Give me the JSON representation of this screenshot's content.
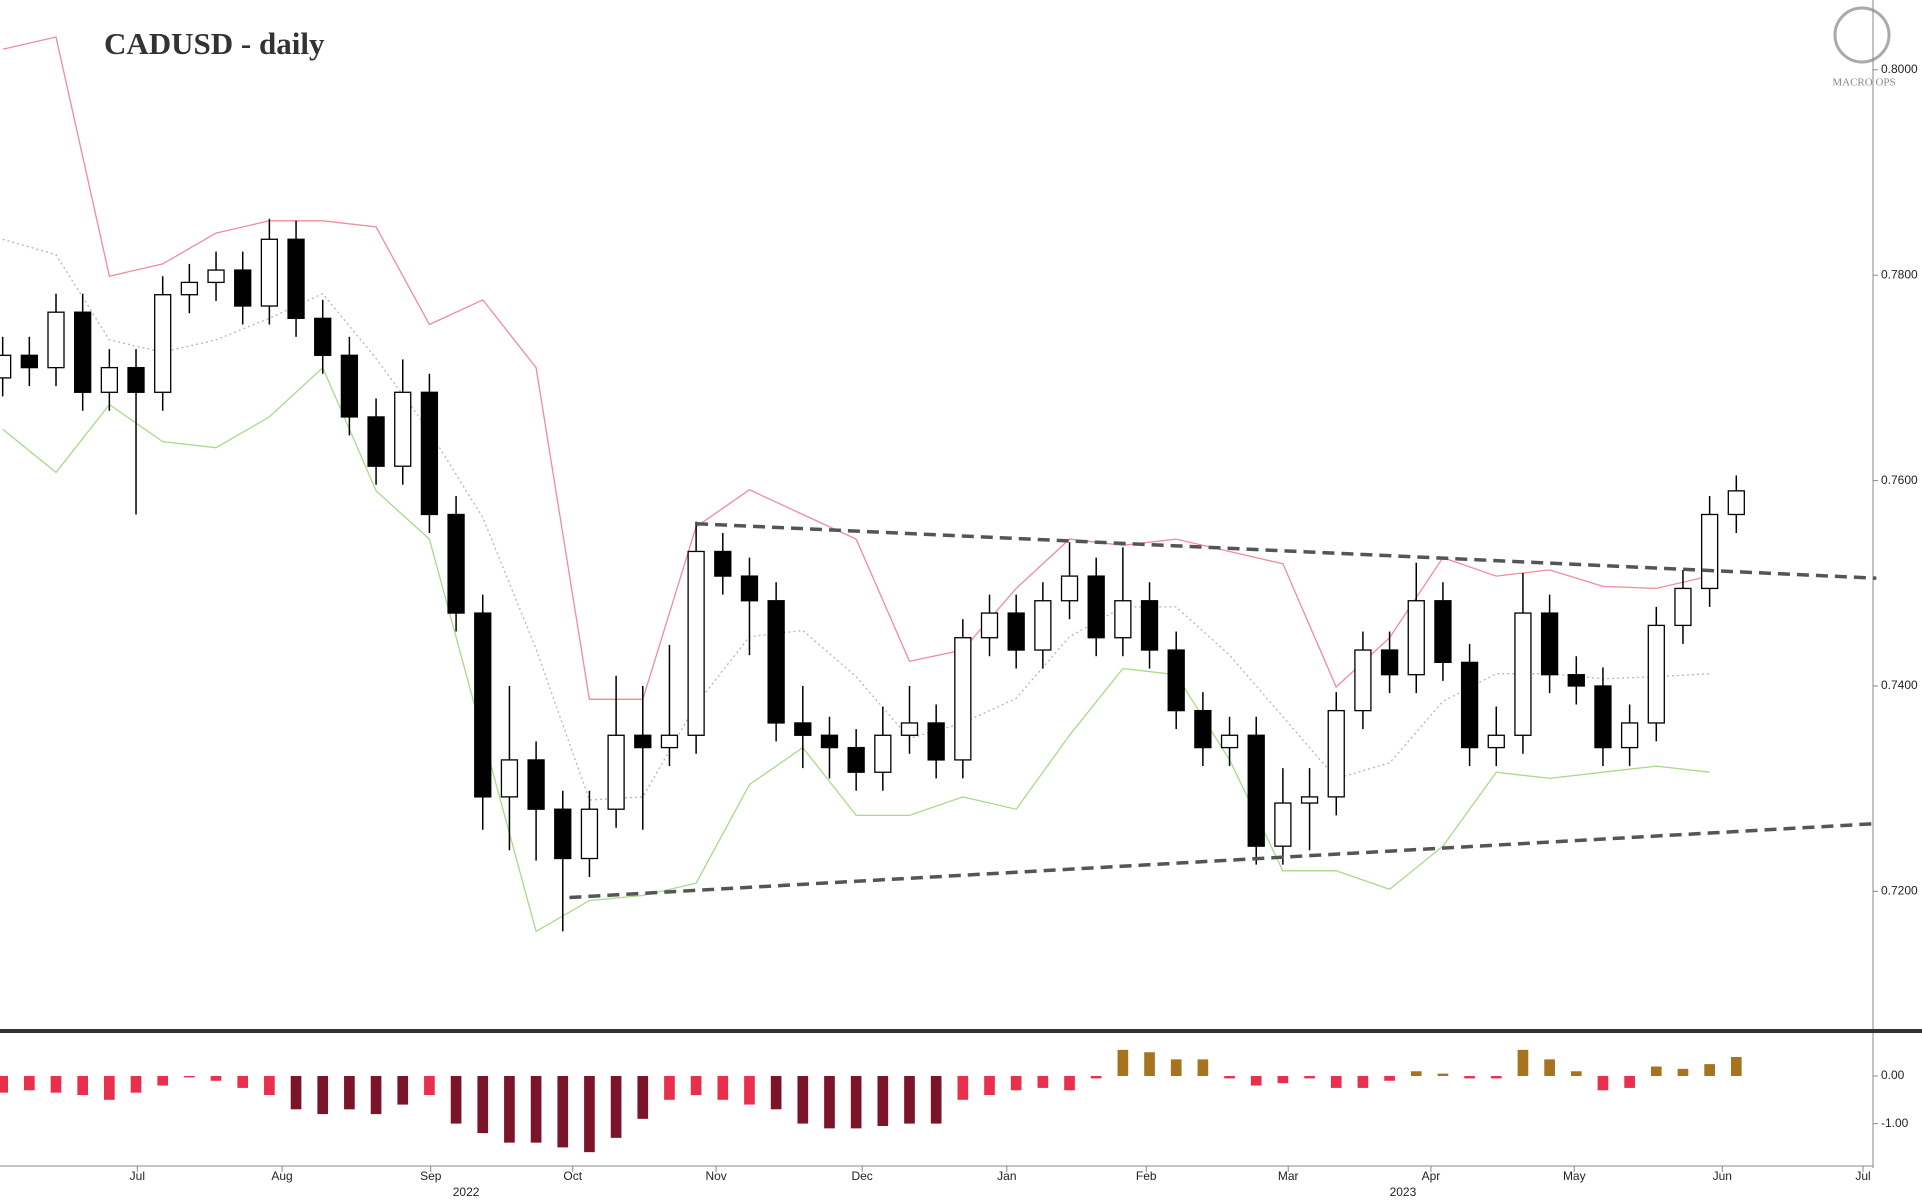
{
  "logo": "MACRO OPS",
  "chart_data": [
    {
      "type": "candlestick",
      "title": "CADUSD - daily",
      "x": [
        0,
        4,
        8,
        12,
        16,
        20,
        24,
        28,
        32,
        36,
        40,
        44,
        48,
        52,
        56,
        60,
        64,
        68,
        72,
        76,
        80,
        84,
        88,
        92,
        96,
        100,
        104,
        108,
        112,
        116,
        120,
        124,
        128,
        132,
        136,
        140,
        144,
        148,
        152,
        156,
        160,
        164,
        168,
        172,
        176,
        180,
        184,
        188,
        192,
        196,
        200,
        204,
        208,
        212,
        216,
        220,
        224,
        228,
        232,
        236,
        240,
        244,
        248,
        252,
        256,
        260
      ],
      "open": [
        0.77,
        0.7722,
        0.771,
        0.7764,
        0.7686,
        0.771,
        0.7686,
        0.7781,
        0.7793,
        0.7805,
        0.777,
        0.7835,
        0.7758,
        0.7722,
        0.7662,
        0.7614,
        0.7686,
        0.7567,
        0.7471,
        0.7292,
        0.7328,
        0.728,
        0.7232,
        0.728,
        0.7352,
        0.734,
        0.7352,
        0.7531,
        0.7507,
        0.7483,
        0.7364,
        0.7352,
        0.734,
        0.7316,
        0.7352,
        0.7364,
        0.7328,
        0.7447,
        0.7471,
        0.7435,
        0.7483,
        0.7507,
        0.7447,
        0.7483,
        0.7435,
        0.7376,
        0.734,
        0.7352,
        0.7244,
        0.7286,
        0.7292,
        0.7376,
        0.7435,
        0.7411,
        0.7483,
        0.7423,
        0.734,
        0.7352,
        0.7471,
        0.7411,
        0.74,
        0.734,
        0.7364,
        0.7459,
        0.7495,
        0.7567
      ],
      "high": [
        0.774,
        0.774,
        0.7782,
        0.7782,
        0.7728,
        0.7728,
        0.7799,
        0.7811,
        0.7823,
        0.7823,
        0.7855,
        0.7853,
        0.7776,
        0.774,
        0.768,
        0.7718,
        0.7704,
        0.7585,
        0.7489,
        0.74,
        0.7346,
        0.7298,
        0.7298,
        0.741,
        0.74,
        0.744,
        0.756,
        0.7549,
        0.7525,
        0.7501,
        0.74,
        0.737,
        0.7358,
        0.738,
        0.74,
        0.7382,
        0.7465,
        0.7489,
        0.7489,
        0.7501,
        0.754,
        0.7525,
        0.7535,
        0.7501,
        0.7453,
        0.7394,
        0.737,
        0.737,
        0.732,
        0.732,
        0.7394,
        0.7453,
        0.7453,
        0.752,
        0.7501,
        0.7441,
        0.738,
        0.751,
        0.7489,
        0.7429,
        0.7418,
        0.7382,
        0.7477,
        0.7513,
        0.7585,
        0.7605
      ],
      "low": [
        0.7682,
        0.7692,
        0.7692,
        0.7668,
        0.7668,
        0.7567,
        0.7668,
        0.7763,
        0.7775,
        0.7752,
        0.7752,
        0.774,
        0.7704,
        0.7644,
        0.7596,
        0.7596,
        0.7549,
        0.7453,
        0.726,
        0.724,
        0.723,
        0.7161,
        0.7214,
        0.7262,
        0.726,
        0.7322,
        0.7334,
        0.7489,
        0.743,
        0.7346,
        0.732,
        0.731,
        0.7298,
        0.7298,
        0.7334,
        0.731,
        0.731,
        0.7429,
        0.7417,
        0.7417,
        0.7465,
        0.7429,
        0.7429,
        0.7417,
        0.7358,
        0.7322,
        0.7322,
        0.7226,
        0.7226,
        0.724,
        0.7274,
        0.7358,
        0.7393,
        0.7393,
        0.7405,
        0.7322,
        0.7322,
        0.7334,
        0.7393,
        0.7382,
        0.7322,
        0.7322,
        0.7346,
        0.7441,
        0.7477,
        0.7549
      ],
      "close": [
        0.7722,
        0.771,
        0.7764,
        0.7686,
        0.771,
        0.7686,
        0.7781,
        0.7793,
        0.7805,
        0.777,
        0.7835,
        0.7758,
        0.7722,
        0.7662,
        0.7614,
        0.7686,
        0.7567,
        0.7471,
        0.7292,
        0.7328,
        0.728,
        0.7232,
        0.728,
        0.7352,
        0.734,
        0.7352,
        0.7531,
        0.7507,
        0.7483,
        0.7364,
        0.7352,
        0.734,
        0.7316,
        0.7352,
        0.7364,
        0.7328,
        0.7447,
        0.7471,
        0.7435,
        0.7483,
        0.7507,
        0.7447,
        0.7483,
        0.7435,
        0.7376,
        0.734,
        0.7352,
        0.7244,
        0.7286,
        0.7292,
        0.7376,
        0.7435,
        0.7411,
        0.7483,
        0.7423,
        0.734,
        0.7352,
        0.7471,
        0.7411,
        0.74,
        0.734,
        0.7364,
        0.7459,
        0.7495,
        0.7567,
        0.759
      ],
      "up_color": "#ffffff",
      "down_color": "#000000",
      "line_x": [
        0,
        8,
        16,
        24,
        32,
        40,
        48,
        56,
        64,
        72,
        80,
        88,
        96,
        104,
        112,
        120,
        128,
        136,
        144,
        152,
        160,
        168,
        176,
        184,
        192,
        200,
        208,
        216,
        224,
        232,
        240,
        248,
        256
      ],
      "lines": [
        {
          "color": "#f28b9b",
          "dash": false,
          "values": [
            0.802,
            0.8032,
            0.7799,
            0.7811,
            0.7841,
            0.7853,
            0.7853,
            0.7847,
            0.7752,
            0.7776,
            0.771,
            0.7387,
            0.7387,
            0.7555,
            0.7591,
            0.7567,
            0.7543,
            0.7424,
            0.7435,
            0.7495,
            0.7543,
            0.7537,
            0.7543,
            0.7531,
            0.7519,
            0.7399,
            0.7447,
            0.7525,
            0.7507,
            0.7513,
            0.7497,
            0.7495,
            0.7507
          ]
        },
        {
          "color": "#b5b5b5",
          "dash": true,
          "values": [
            0.7835,
            0.782,
            0.7737,
            0.7725,
            0.7737,
            0.7758,
            0.7782,
            0.7719,
            0.7648,
            0.7564,
            0.7436,
            0.7289,
            0.7292,
            0.7382,
            0.7448,
            0.7454,
            0.7409,
            0.7349,
            0.7364,
            0.7388,
            0.7448,
            0.7477,
            0.7477,
            0.743,
            0.737,
            0.731,
            0.7325,
            0.7385,
            0.7412,
            0.7412,
            0.7407,
            0.7409,
            0.7412
          ]
        },
        {
          "color": "#a9d98a",
          "dash": false,
          "values": [
            0.765,
            0.7608,
            0.7674,
            0.7638,
            0.7632,
            0.7662,
            0.771,
            0.759,
            0.7543,
            0.7352,
            0.7161,
            0.7191,
            0.7196,
            0.7208,
            0.7304,
            0.734,
            0.7274,
            0.7274,
            0.7292,
            0.728,
            0.7352,
            0.7417,
            0.7411,
            0.7328,
            0.722,
            0.722,
            0.7202,
            0.7244,
            0.7316,
            0.731,
            0.7316,
            0.7322,
            0.7316
          ]
        }
      ],
      "trendlines": [
        {
          "color": "#555555",
          "x": [
            104,
            281
          ],
          "values": [
            0.7558,
            0.7505
          ]
        },
        {
          "color": "#555555",
          "x": [
            85,
            281
          ],
          "values": [
            0.7194,
            0.7266
          ]
        }
      ],
      "xlim": [
        -0.4,
        280.5
      ],
      "xticks": [
        {
          "value": 20.2,
          "label": "Jul"
        },
        {
          "value": 41.9,
          "label": "Aug"
        },
        {
          "value": 64.2,
          "label": "Sep"
        },
        {
          "value": 85.5,
          "label": "Oct"
        },
        {
          "value": 107,
          "label": "Nov"
        },
        {
          "value": 128.9,
          "label": "Dec"
        },
        {
          "value": 150.6,
          "label": "Jan"
        },
        {
          "value": 171.5,
          "label": "Feb"
        },
        {
          "value": 192.8,
          "label": "Mar"
        },
        {
          "value": 214.2,
          "label": "Apr"
        },
        {
          "value": 235.7,
          "label": "May"
        },
        {
          "value": 257.9,
          "label": "Jun"
        },
        {
          "value": 279,
          "label": "Jul"
        }
      ],
      "year_labels": [
        {
          "value": 69.5,
          "label": "2022"
        },
        {
          "value": 210,
          "label": "2023"
        }
      ],
      "ylim": [
        0.7065,
        0.8068
      ],
      "yticks": [
        {
          "value": 0.72,
          "label": "0.7200"
        },
        {
          "value": 0.74,
          "label": "0.7400"
        },
        {
          "value": 0.76,
          "label": "0.7600"
        },
        {
          "value": 0.78,
          "label": "0.7800"
        },
        {
          "value": 0.8,
          "label": "0.8000"
        }
      ]
    },
    {
      "type": "bar",
      "x": [
        0,
        4,
        8,
        12,
        16,
        20,
        24,
        28,
        32,
        36,
        40,
        44,
        48,
        52,
        56,
        60,
        64,
        68,
        72,
        76,
        80,
        84,
        88,
        92,
        96,
        100,
        104,
        108,
        112,
        116,
        120,
        124,
        128,
        132,
        136,
        140,
        144,
        148,
        152,
        156,
        160,
        164,
        168,
        172,
        176,
        180,
        184,
        188,
        192,
        196,
        200,
        204,
        208,
        212,
        216,
        220,
        224,
        228,
        232,
        236,
        240,
        244,
        248,
        252,
        256,
        260
      ],
      "values": [
        -0.35,
        -0.3,
        -0.35,
        -0.4,
        -0.5,
        -0.35,
        -0.2,
        -0.03,
        -0.1,
        -0.25,
        -0.4,
        -0.7,
        -0.8,
        -0.7,
        -0.8,
        -0.6,
        -0.4,
        -1.0,
        -1.2,
        -1.4,
        -1.4,
        -1.5,
        -1.6,
        -1.3,
        -0.9,
        -0.5,
        -0.4,
        -0.5,
        -0.6,
        -0.7,
        -1.0,
        -1.1,
        -1.1,
        -1.05,
        -1.0,
        -1.0,
        -0.5,
        -0.4,
        -0.3,
        -0.25,
        -0.3,
        -0.05,
        0.55,
        0.5,
        0.35,
        0.35,
        -0.05,
        -0.2,
        -0.15,
        -0.05,
        -0.25,
        -0.25,
        -0.1,
        0.1,
        0.05,
        -0.05,
        -0.05,
        0.55,
        0.35,
        0.1,
        -0.3,
        -0.25,
        0.2,
        0.15,
        0.25,
        0.4
      ],
      "colors": [
        "#e8304d",
        "#e8304d",
        "#e8304d",
        "#e8304d",
        "#e8304d",
        "#e8304d",
        "#e8304d",
        "#e8304d",
        "#e8304d",
        "#e8304d",
        "#e8304d",
        "#7b1428",
        "#7b1428",
        "#7b1428",
        "#7b1428",
        "#7b1428",
        "#e8304d",
        "#7b1428",
        "#7b1428",
        "#7b1428",
        "#7b1428",
        "#7b1428",
        "#7b1428",
        "#7b1428",
        "#7b1428",
        "#e8304d",
        "#e8304d",
        "#e8304d",
        "#e8304d",
        "#7b1428",
        "#7b1428",
        "#7b1428",
        "#7b1428",
        "#7b1428",
        "#7b1428",
        "#7b1428",
        "#e8304d",
        "#e8304d",
        "#e8304d",
        "#e8304d",
        "#e8304d",
        "#e8304d",
        "#a8731f",
        "#a8731f",
        "#a8731f",
        "#a8731f",
        "#e8304d",
        "#e8304d",
        "#e8304d",
        "#e8304d",
        "#e8304d",
        "#e8304d",
        "#e8304d",
        "#a8731f",
        "#a8731f",
        "#e8304d",
        "#e8304d",
        "#a8731f",
        "#a8731f",
        "#a8731f",
        "#e8304d",
        "#e8304d",
        "#a8731f",
        "#a8731f",
        "#a8731f",
        "#a8731f"
      ],
      "ylim": [
        -1.87,
        0.82
      ],
      "yticks": [
        {
          "value": 0,
          "label": "0.00"
        },
        {
          "value": -1,
          "label": "-1.00"
        }
      ]
    }
  ]
}
